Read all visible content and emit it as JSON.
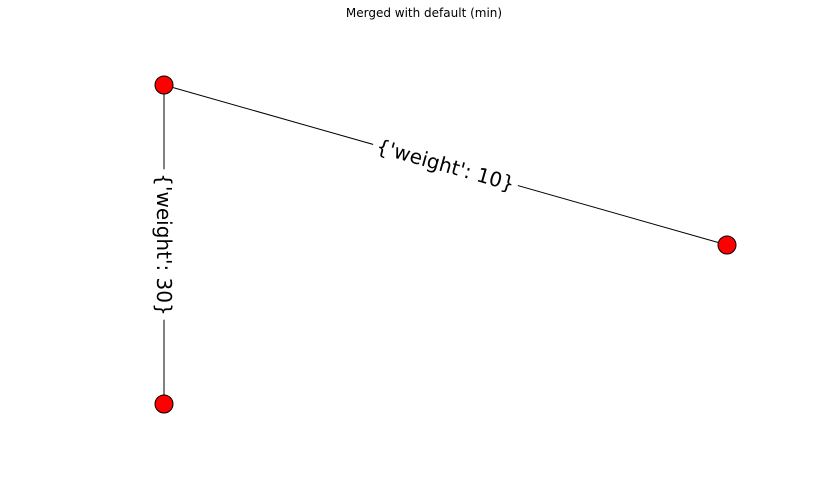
{
  "title": "Merged with default (min)",
  "colors": {
    "node_fill": "#ff0000",
    "node_stroke": "#000000",
    "edge": "#000000",
    "background": "#ffffff"
  },
  "graph": {
    "nodes": [
      {
        "id": "top-left"
      },
      {
        "id": "right"
      },
      {
        "id": "bottom-left"
      }
    ],
    "edges": [
      {
        "id": "edge-top-right",
        "source": "top-left",
        "target": "right",
        "label": "{'weight': 10}"
      },
      {
        "id": "edge-top-bottom",
        "source": "top-left",
        "target": "bottom-left",
        "label": "{'weight': 30}"
      }
    ]
  }
}
